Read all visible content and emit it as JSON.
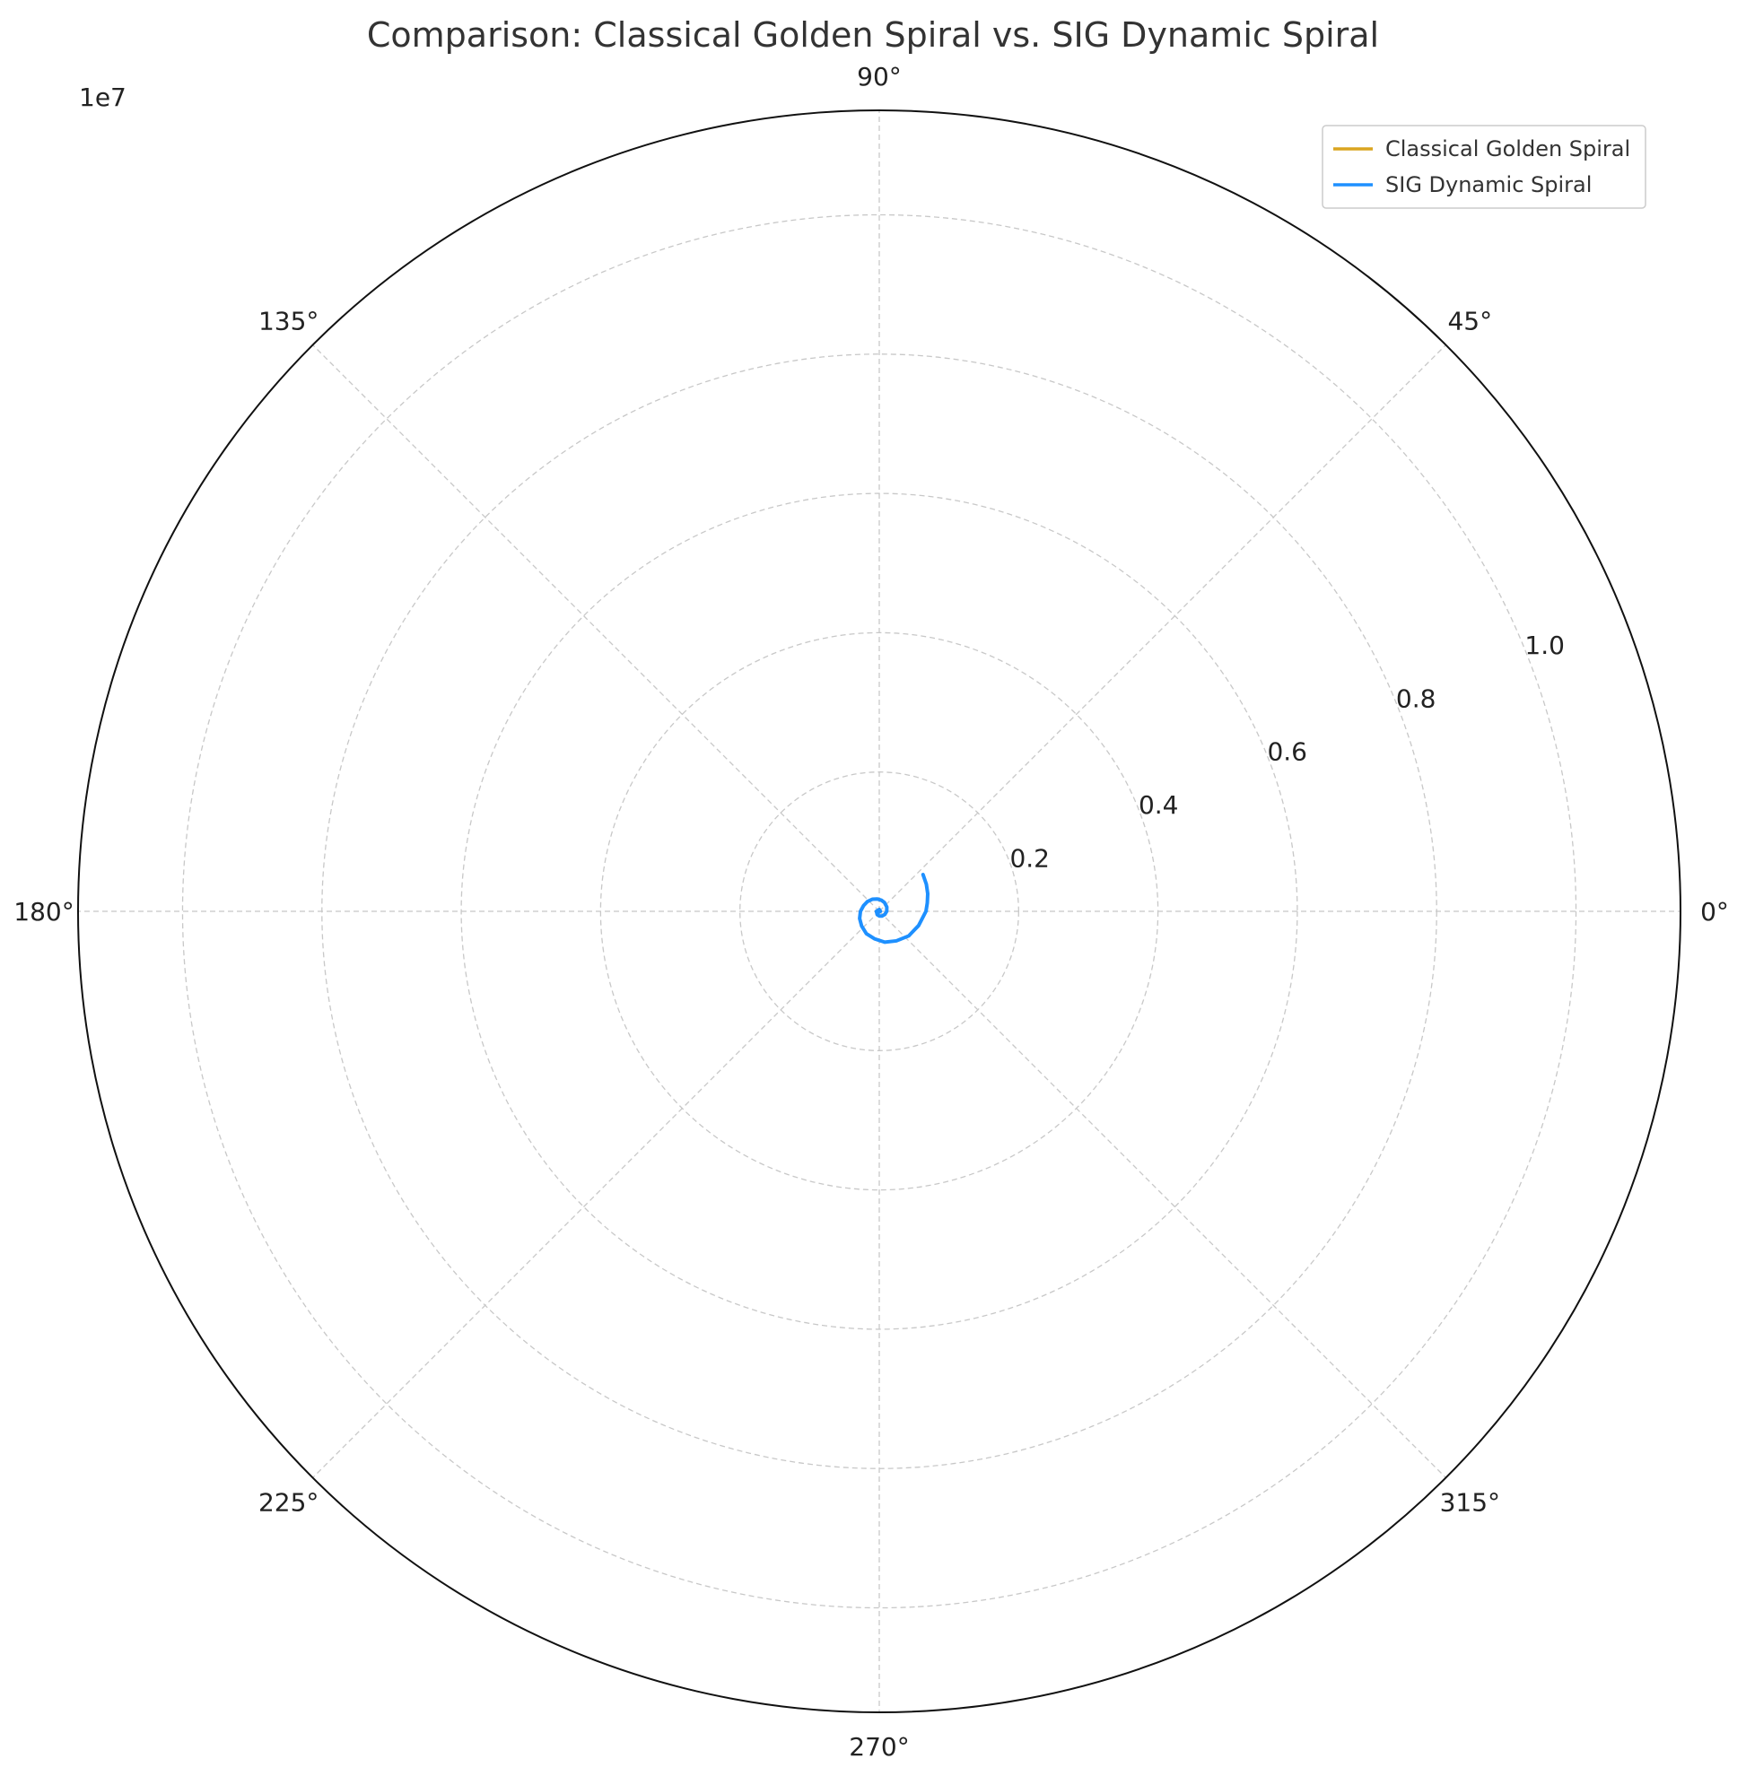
{
  "chart_data": {
    "type": "line",
    "projection": "polar",
    "title": "Comparison: Classical Golden Spiral vs. SIG Dynamic Spiral",
    "offset_label": "1e7",
    "r_scale": 10000000,
    "rlim": [
      0,
      1.15
    ],
    "r_ticks": [
      0.2,
      0.4,
      0.6,
      0.8,
      1.0
    ],
    "r_tick_labels": [
      "0.2",
      "0.4",
      "0.6",
      "0.8",
      "1.0"
    ],
    "r_gridlines": [
      0.2,
      0.4,
      0.6,
      0.8,
      1.0,
      1.15
    ],
    "theta_ticks_deg": [
      0,
      45,
      90,
      135,
      180,
      225,
      270,
      315
    ],
    "theta_tick_labels": [
      "0°",
      "45°",
      "90°",
      "135°",
      "180°",
      "225°",
      "270°",
      "315°"
    ],
    "grid": true,
    "legend_position": "top-right",
    "series": [
      {
        "name": "Classical Golden Spiral",
        "color": "#DAA520",
        "theta_deg": [
          0,
          90,
          180,
          270,
          360,
          450,
          540,
          600,
          630,
          660,
          690,
          720,
          750,
          780,
          800,
          820,
          840,
          860,
          880,
          900,
          920,
          940,
          960,
          980,
          1000,
          1020,
          1040,
          1060,
          1080,
          1090,
          1100,
          1110,
          1120
        ],
        "r": [
          0.0002,
          0.0004,
          0.0006,
          0.001,
          0.0016,
          0.0026,
          0.0042,
          0.0057,
          0.0067,
          0.0078,
          0.0091,
          0.0107,
          0.0125,
          0.0147,
          0.0163,
          0.018,
          0.02,
          0.022,
          0.024,
          0.027,
          0.03,
          0.033,
          0.037,
          0.04,
          0.045,
          0.049,
          0.055,
          0.06,
          0.067,
          0.07,
          0.074,
          0.078,
          0.082
        ]
      },
      {
        "name": "SIG Dynamic Spiral",
        "color": "#1E90FF",
        "theta_deg": [
          0,
          90,
          180,
          270,
          360,
          450,
          540,
          600,
          630,
          660,
          690,
          720,
          750,
          780,
          800,
          820,
          840,
          860,
          880,
          900,
          920,
          940,
          960,
          980,
          1000,
          1020,
          1040,
          1060,
          1080,
          1090,
          1100,
          1110,
          1120
        ],
        "r": [
          0.0002,
          0.0004,
          0.0006,
          0.001,
          0.0016,
          0.0026,
          0.0042,
          0.0057,
          0.0067,
          0.0078,
          0.0091,
          0.0107,
          0.0125,
          0.0147,
          0.0163,
          0.018,
          0.02,
          0.022,
          0.024,
          0.027,
          0.03,
          0.033,
          0.037,
          0.04,
          0.045,
          0.049,
          0.055,
          0.06,
          0.067,
          0.07,
          0.074,
          0.078,
          0.082
        ]
      }
    ]
  }
}
